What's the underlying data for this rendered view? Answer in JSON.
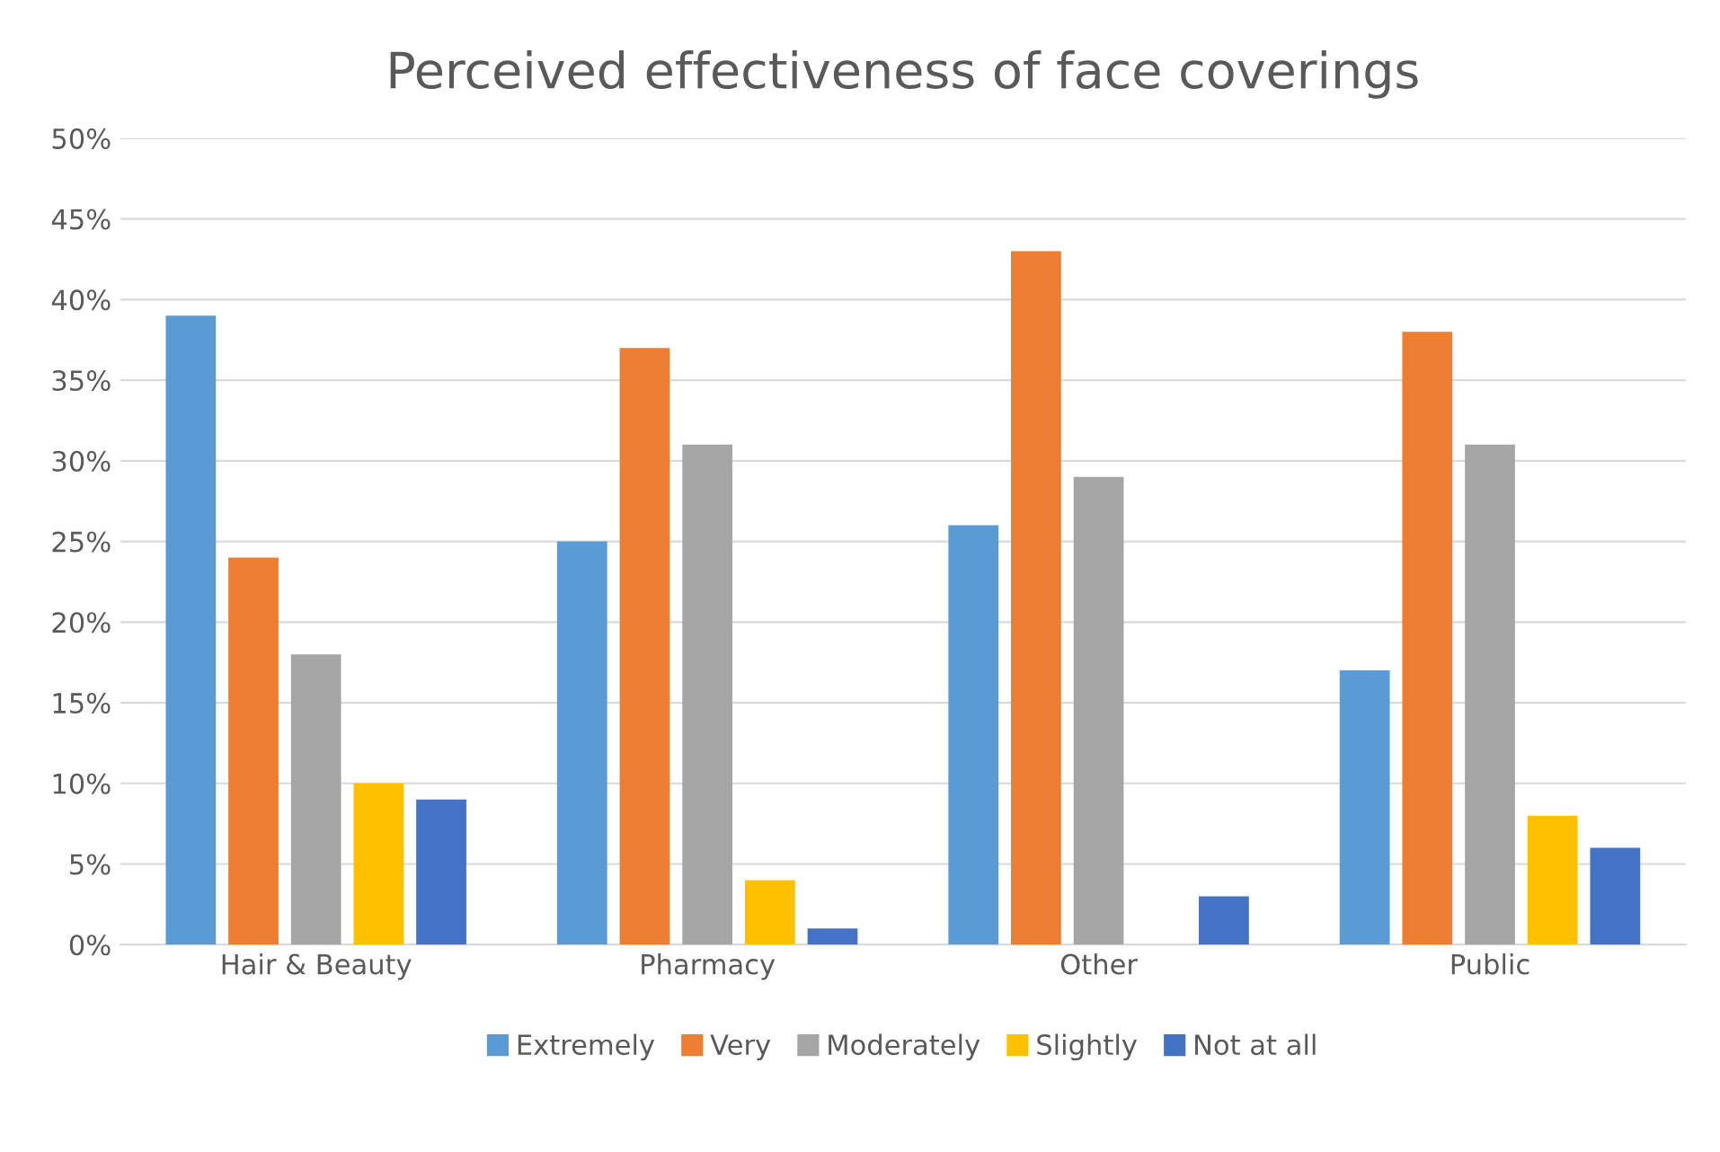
{
  "chart_data": {
    "type": "bar",
    "title": "Perceived effectiveness of face coverings",
    "categories": [
      "Hair & Beauty",
      "Pharmacy",
      "Other",
      "Public"
    ],
    "series": [
      {
        "name": "Extremely",
        "color": "#5b9bd5",
        "values": [
          39,
          25,
          26,
          17
        ]
      },
      {
        "name": "Very",
        "color": "#ed7d31",
        "values": [
          24,
          37,
          43,
          38
        ]
      },
      {
        "name": "Moderately",
        "color": "#a5a5a5",
        "values": [
          18,
          31,
          29,
          31
        ]
      },
      {
        "name": "Slightly",
        "color": "#ffc000",
        "values": [
          10,
          4,
          null,
          8
        ]
      },
      {
        "name": "Not at all",
        "color": "#4472c4",
        "values": [
          9,
          1,
          3,
          6
        ]
      }
    ],
    "ylim": [
      0,
      50
    ],
    "yticks": [
      {
        "value": 0,
        "label": "0%"
      },
      {
        "value": 5,
        "label": "5%"
      },
      {
        "value": 10,
        "label": "10%"
      },
      {
        "value": 15,
        "label": "15%"
      },
      {
        "value": 20,
        "label": "20%"
      },
      {
        "value": 25,
        "label": "25%"
      },
      {
        "value": 30,
        "label": "30%"
      },
      {
        "value": 35,
        "label": "35%"
      },
      {
        "value": 40,
        "label": "40%"
      },
      {
        "value": 45,
        "label": "45%"
      },
      {
        "value": 50,
        "label": "50%"
      }
    ],
    "grid": "y",
    "legend": "bottom"
  }
}
